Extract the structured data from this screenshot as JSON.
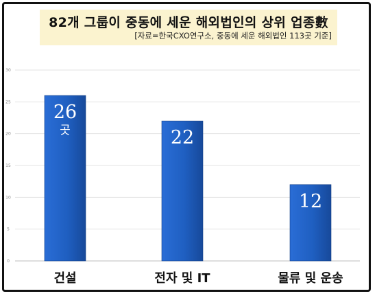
{
  "chart_data": {
    "type": "bar",
    "title": "82개 그룹이 중동에 세운 해외법인의 상위 업종數",
    "subtitle": "[자료=한국CXO연구소, 중동에 세운 해외법인 113곳 기준]",
    "categories": [
      "건설",
      "전자 및 IT",
      "물류 및 운송"
    ],
    "values": [
      26,
      22,
      12
    ],
    "data_labels": [
      "26",
      "22",
      "12"
    ],
    "unit_label": "곳",
    "ylim": [
      0,
      30
    ],
    "yticks": [
      0,
      5,
      10,
      15,
      20,
      25,
      30
    ],
    "grid": true,
    "bar_color": "#1f5fc1"
  }
}
